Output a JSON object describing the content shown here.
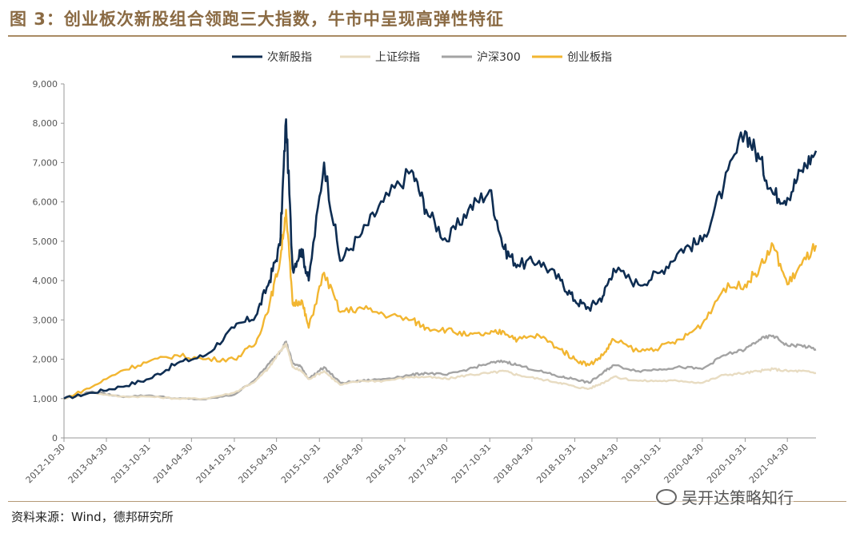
{
  "header": {
    "title": "图 3：创业板次新股组合领跑三大指数，牛市中呈现高弹性特征"
  },
  "footer": {
    "source": "资料来源：Wind，德邦研究所",
    "watermark": "吴开达策略知行"
  },
  "chart_data": {
    "type": "line",
    "title": "图 3：创业板次新股组合领跑三大指数，牛市中呈现高弹性特征",
    "xlabel": "",
    "ylabel": "",
    "ylim": [
      0,
      9000
    ],
    "yticks": [
      0,
      1000,
      2000,
      3000,
      4000,
      5000,
      6000,
      7000,
      8000,
      9000
    ],
    "ytick_labels": [
      "0",
      "1,000",
      "2,000",
      "3,000",
      "4,000",
      "5,000",
      "6,000",
      "7,000",
      "8,000",
      "9,000"
    ],
    "xlim": [
      "2012-10-30",
      "2021-08-31"
    ],
    "xtick_labels": [
      "2012-10-30",
      "2013-04-30",
      "2013-10-31",
      "2014-04-30",
      "2014-10-31",
      "2015-04-30",
      "2015-10-31",
      "2016-04-30",
      "2016-10-31",
      "2017-04-30",
      "2017-10-31",
      "2018-04-30",
      "2018-10-31",
      "2019-04-30",
      "2019-10-31",
      "2020-04-30",
      "2020-10-31",
      "2021-04-30"
    ],
    "legend_position": "top-center",
    "grid": false,
    "x_dates": [
      "2012-10-30",
      "2013-02-28",
      "2013-06-30",
      "2013-10-31",
      "2014-02-28",
      "2014-06-30",
      "2014-10-31",
      "2015-01-31",
      "2015-03-31",
      "2015-05-15",
      "2015-06-10",
      "2015-07-08",
      "2015-08-15",
      "2015-09-15",
      "2015-11-20",
      "2016-01-28",
      "2016-04-30",
      "2016-07-31",
      "2016-11-30",
      "2017-01-31",
      "2017-04-30",
      "2017-07-31",
      "2017-10-31",
      "2017-12-31",
      "2018-02-28",
      "2018-05-31",
      "2018-08-31",
      "2018-10-31",
      "2018-12-31",
      "2019-02-28",
      "2019-04-15",
      "2019-07-31",
      "2019-10-31",
      "2020-01-31",
      "2020-04-30",
      "2020-07-31",
      "2020-10-31",
      "2020-12-31",
      "2021-02-28",
      "2021-04-30",
      "2021-06-30",
      "2021-08-31"
    ],
    "series": [
      {
        "name": "次新股指",
        "color": "#0e2d52",
        "values": [
          1000,
          1150,
          1300,
          1500,
          1900,
          2100,
          2800,
          3100,
          4000,
          4900,
          8100,
          4300,
          4800,
          4000,
          7000,
          4500,
          5200,
          6000,
          6800,
          5800,
          5000,
          5800,
          6300,
          4800,
          4400,
          4500,
          4000,
          3500,
          3300,
          3600,
          4300,
          3900,
          4200,
          4800,
          5000,
          6400,
          7800,
          7100,
          6200,
          6100,
          6800,
          7300
        ]
      },
      {
        "name": "上证综指",
        "color": "#e8dcc2",
        "values": [
          1000,
          1150,
          1050,
          1050,
          1000,
          1000,
          1150,
          1450,
          1800,
          2200,
          2400,
          1800,
          1700,
          1500,
          1700,
          1350,
          1450,
          1450,
          1550,
          1550,
          1500,
          1600,
          1650,
          1700,
          1600,
          1500,
          1400,
          1300,
          1250,
          1400,
          1550,
          1450,
          1450,
          1450,
          1400,
          1600,
          1650,
          1700,
          1750,
          1700,
          1700,
          1650
        ]
      },
      {
        "name": "沪深300",
        "color": "#a3a3a3",
        "values": [
          1000,
          1180,
          1050,
          1080,
          1000,
          980,
          1100,
          1500,
          1900,
          2200,
          2450,
          1900,
          1800,
          1500,
          1800,
          1400,
          1450,
          1500,
          1600,
          1650,
          1600,
          1750,
          1900,
          1950,
          1850,
          1700,
          1550,
          1500,
          1400,
          1650,
          1850,
          1700,
          1750,
          1800,
          1750,
          2100,
          2250,
          2500,
          2600,
          2350,
          2350,
          2250
        ]
      },
      {
        "name": "创业板指",
        "color": "#f2b631",
        "values": [
          1000,
          1300,
          1700,
          1950,
          2100,
          2000,
          2000,
          2400,
          3400,
          4500,
          5800,
          3400,
          3500,
          2800,
          4200,
          3200,
          3300,
          3150,
          3000,
          2800,
          2750,
          2600,
          2650,
          2700,
          2500,
          2600,
          2250,
          2000,
          1850,
          2100,
          2500,
          2200,
          2300,
          2500,
          2900,
          3800,
          3900,
          4300,
          4900,
          3900,
          4400,
          4900
        ]
      }
    ]
  }
}
